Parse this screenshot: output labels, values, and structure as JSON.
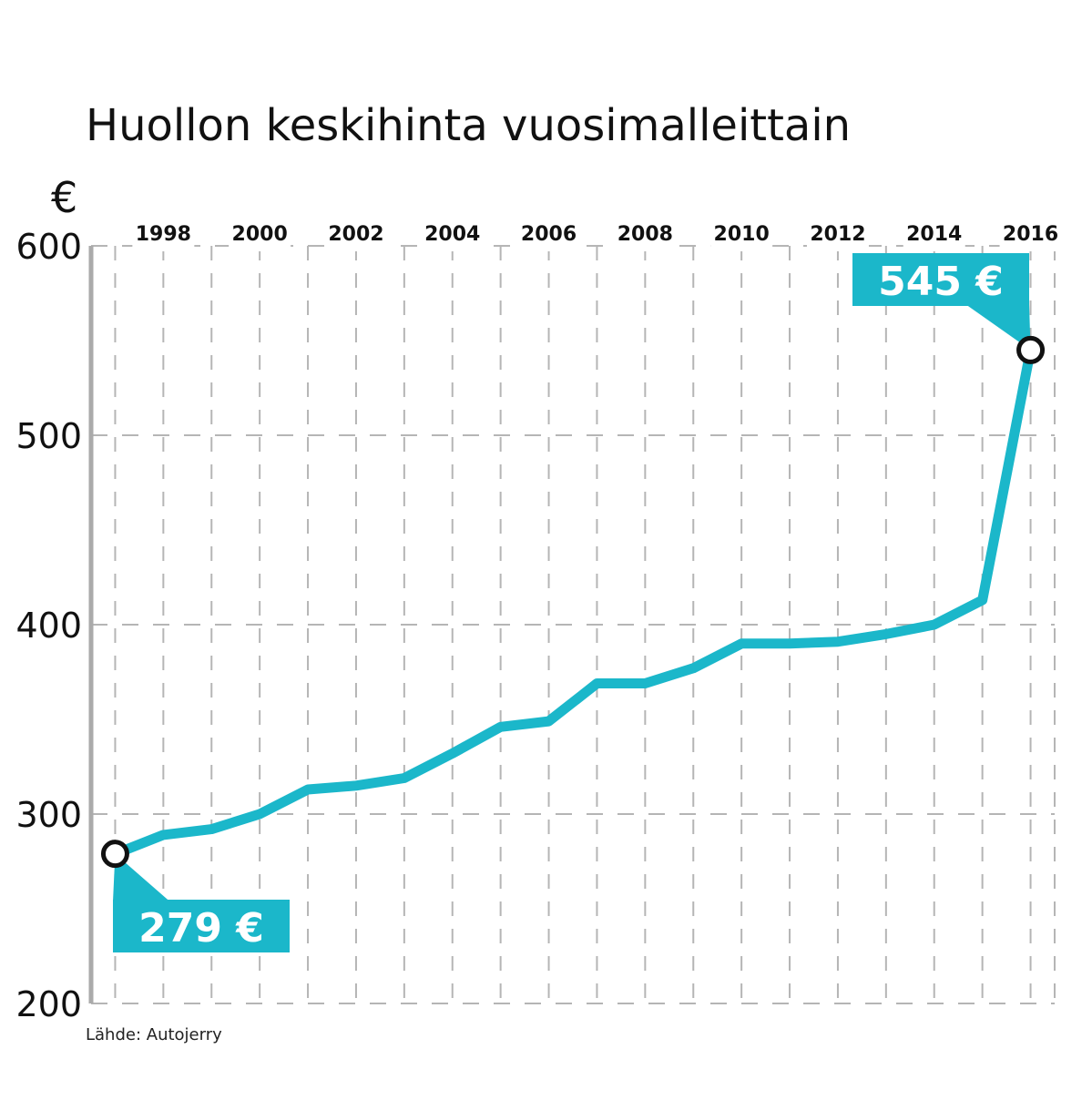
{
  "colors": {
    "line": "#1bb7ca",
    "grid": "#b5b5b5",
    "axis": "#aaaaaa",
    "text": "#111111",
    "callout_bg": "#1bb7ca",
    "callout_text": "#ffffff",
    "marker_stroke": "#111111",
    "marker_fill": "#ffffff"
  },
  "chart_data": {
    "type": "line",
    "title": "Huollon keskihinta vuosimalleittain",
    "ylabel": "€",
    "xlabel": "",
    "ylim": [
      200,
      600
    ],
    "xlim": [
      1996.5,
      2016.5
    ],
    "yticks": [
      200,
      300,
      400,
      500,
      600
    ],
    "ytick_labels": [
      "200",
      "300",
      "400",
      "500",
      "600"
    ],
    "xticks": [
      1998,
      2000,
      2002,
      2004,
      2006,
      2008,
      2010,
      2012,
      2014,
      2016
    ],
    "xtick_labels": [
      "1998",
      "2000",
      "2002",
      "2004",
      "2006",
      "2008",
      "2010",
      "2012",
      "2014",
      "2016"
    ],
    "x_axis_position": "top",
    "grid": true,
    "series": [
      {
        "x": [
          1997,
          1998,
          1999,
          2000,
          2001,
          2002,
          2003,
          2004,
          2005,
          2006,
          2007,
          2008,
          2009,
          2010,
          2011,
          2012,
          2013,
          2014,
          2015,
          2016
        ],
        "values": [
          279,
          289,
          292,
          300,
          313,
          315,
          319,
          332,
          346,
          349,
          369,
          369,
          377,
          390,
          390,
          391,
          395,
          400,
          413,
          545
        ]
      }
    ],
    "annotations": [
      {
        "x": 1997,
        "y": 279,
        "label": "279 €"
      },
      {
        "x": 2016,
        "y": 545,
        "label": "545 €"
      }
    ],
    "source": "Lähde: Autojerry"
  }
}
